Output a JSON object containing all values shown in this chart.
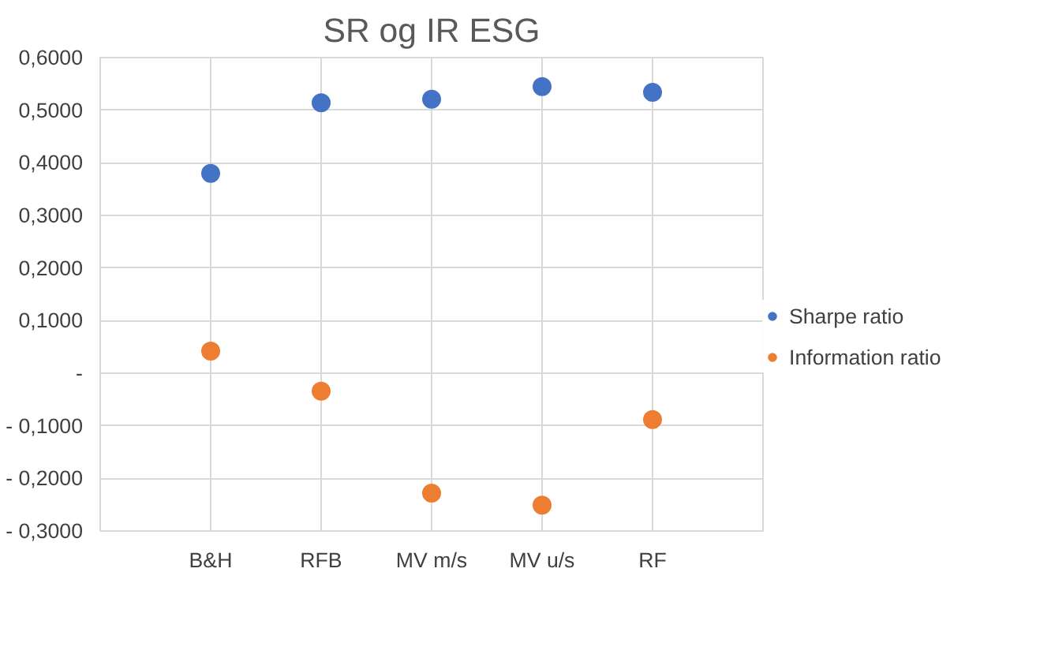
{
  "chart_data": {
    "type": "scatter",
    "title": "SR og IR ESG",
    "categories": [
      "B&H",
      "RFB",
      "MV m/s",
      "MV u/s",
      "RF"
    ],
    "series": [
      {
        "name": "Sharpe ratio",
        "color": "#4472c4",
        "values": [
          0.38,
          0.514,
          0.521,
          0.545,
          0.534
        ]
      },
      {
        "name": "Information ratio",
        "color": "#ed7d31",
        "values": [
          0.042,
          -0.034,
          -0.228,
          -0.251,
          -0.088
        ]
      }
    ],
    "ylim": [
      -0.3,
      0.6
    ],
    "yticks": [
      {
        "value": -0.3,
        "label": "- 0,3000"
      },
      {
        "value": -0.2,
        "label": "- 0,2000"
      },
      {
        "value": -0.1,
        "label": "- 0,1000"
      },
      {
        "value": 0,
        "label": "-"
      },
      {
        "value": 0.1,
        "label": "0,1000"
      },
      {
        "value": 0.2,
        "label": "0,2000"
      },
      {
        "value": 0.3,
        "label": "0,3000"
      },
      {
        "value": 0.4,
        "label": "0,4000"
      },
      {
        "value": 0.5,
        "label": "0,5000"
      },
      {
        "value": 0.6,
        "label": "0,6000"
      }
    ],
    "grid": true,
    "legend": "right",
    "marker": "circle"
  }
}
